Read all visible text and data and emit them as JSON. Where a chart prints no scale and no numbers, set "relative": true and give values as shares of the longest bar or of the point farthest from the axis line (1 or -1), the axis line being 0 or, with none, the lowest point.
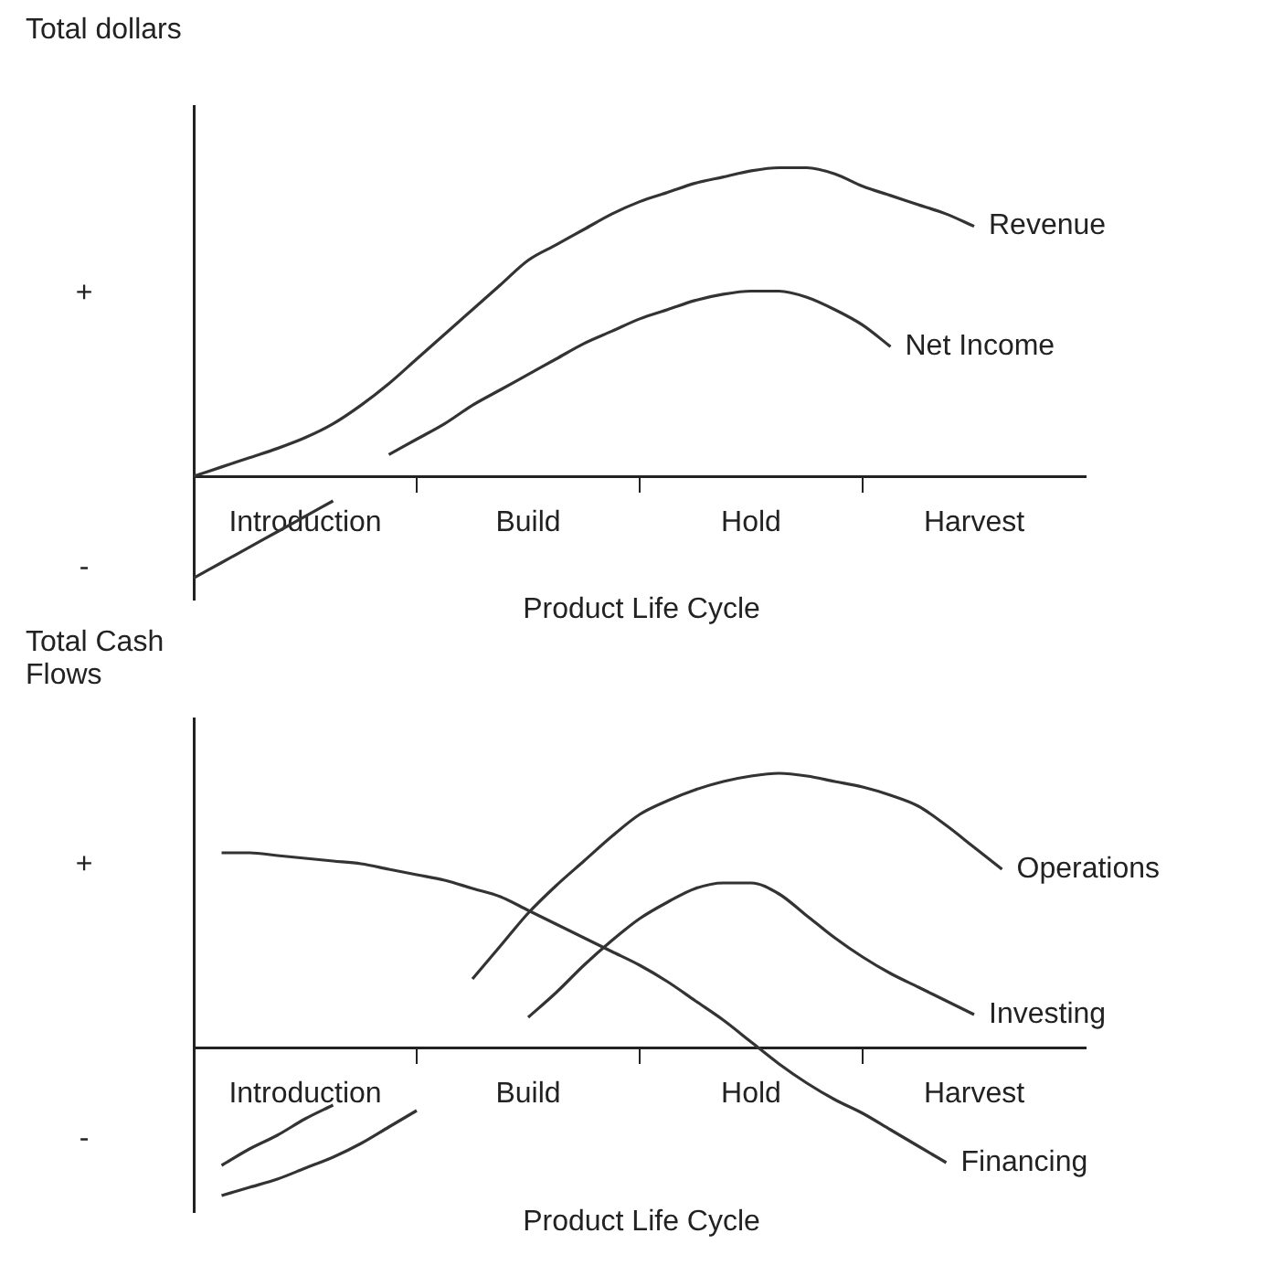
{
  "chart_data": [
    {
      "type": "line",
      "relative": true,
      "ylabel": "Total dollars",
      "xlabel": "Product Life Cycle",
      "categories": [
        null,
        null,
        null,
        null,
        "Introduction",
        null,
        null,
        null,
        null,
        null,
        null,
        null,
        "Build",
        null,
        null,
        null,
        null,
        null,
        null,
        null,
        "Hold",
        null,
        null,
        null,
        null,
        null,
        null,
        null,
        "Harvest",
        null,
        null,
        null,
        null
      ],
      "grid": false,
      "legend": false,
      "marker": "none",
      "line_style": "solid",
      "annotations": [
        "+",
        "-"
      ],
      "series": [
        {
          "name": "Revenue",
          "color": "#333333",
          "values": [
            0,
            0.03,
            0.06,
            0.09,
            0.125,
            0.17,
            0.23,
            0.3,
            0.38,
            0.46,
            0.54,
            0.62,
            0.7,
            0.75,
            0.8,
            0.85,
            0.89,
            0.92,
            0.95,
            0.97,
            0.99,
            1.0,
            1.0,
            0.98,
            0.94,
            0.91,
            0.88,
            0.85,
            0.81,
            null,
            null,
            null,
            null
          ]
        },
        {
          "name": "Net Income",
          "color": "#333333",
          "values": [
            -0.33,
            -0.28,
            -0.23,
            -0.18,
            -0.13,
            -0.08,
            null,
            0.07,
            0.12,
            0.17,
            0.23,
            0.28,
            0.33,
            0.38,
            0.43,
            0.47,
            0.51,
            0.54,
            0.57,
            0.59,
            0.6,
            0.6,
            0.58,
            0.54,
            0.49,
            0.42,
            null,
            null,
            null,
            null,
            null,
            null,
            null
          ]
        }
      ]
    },
    {
      "type": "line",
      "relative": true,
      "ylabel": "Total Cash Flows",
      "xlabel": "Product Life Cycle",
      "categories": [
        null,
        null,
        null,
        null,
        "Introduction",
        null,
        null,
        null,
        null,
        null,
        null,
        null,
        "Build",
        null,
        null,
        null,
        null,
        null,
        null,
        null,
        "Hold",
        null,
        null,
        null,
        null,
        null,
        null,
        null,
        "Harvest",
        null,
        null,
        null,
        null
      ],
      "grid": false,
      "legend": false,
      "marker": "none",
      "line_style": "solid",
      "annotations": [
        "+",
        "-"
      ],
      "series": [
        {
          "name": "Operations",
          "color": "#333333",
          "values": [
            null,
            -0.54,
            -0.51,
            -0.48,
            -0.44,
            -0.4,
            -0.35,
            -0.29,
            -0.23,
            null,
            0.25,
            0.37,
            0.49,
            0.59,
            0.68,
            0.77,
            0.85,
            0.9,
            0.94,
            0.97,
            0.99,
            1.0,
            0.99,
            0.97,
            0.95,
            0.92,
            0.88,
            0.81,
            0.73,
            0.65,
            null,
            null,
            null
          ]
        },
        {
          "name": "Investing",
          "color": "#333333",
          "values": [
            null,
            -0.43,
            -0.37,
            -0.32,
            -0.26,
            -0.21,
            null,
            null,
            null,
            null,
            null,
            null,
            0.11,
            0.2,
            0.3,
            0.39,
            0.47,
            0.53,
            0.58,
            0.6,
            0.6,
            0.56,
            0.48,
            0.4,
            0.33,
            0.27,
            0.22,
            0.17,
            0.12,
            null,
            null,
            null,
            null
          ]
        },
        {
          "name": "Financing",
          "color": "#333333",
          "values": [
            null,
            0.71,
            0.71,
            0.7,
            0.69,
            0.68,
            0.67,
            0.65,
            0.63,
            0.61,
            0.58,
            0.55,
            0.5,
            0.45,
            0.4,
            0.35,
            0.3,
            0.24,
            0.17,
            0.1,
            0.02,
            -0.06,
            -0.13,
            -0.19,
            -0.24,
            -0.3,
            -0.36,
            -0.42,
            null,
            null,
            null,
            null,
            null
          ]
        }
      ]
    }
  ]
}
